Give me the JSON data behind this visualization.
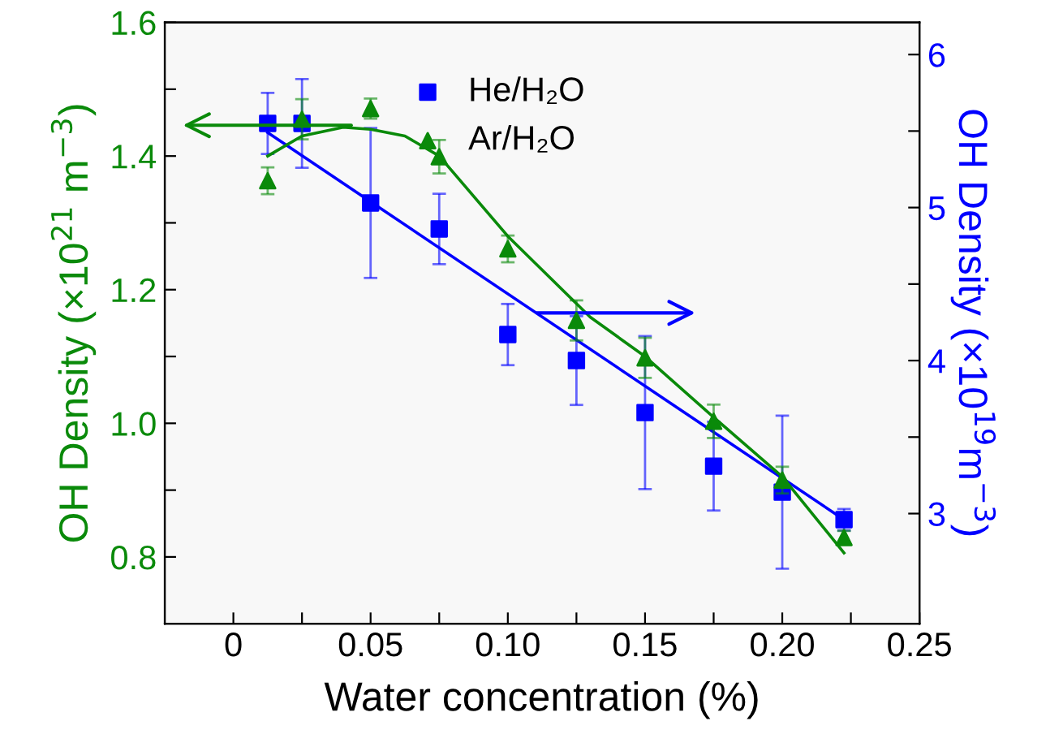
{
  "chart_data": {
    "type": "scatter",
    "xlabel": "Water concentration (%)",
    "ylabel": "OH Density (×10$^{21}$ m$^{−3}$)",
    "y2label": "OH Density (×10$^{19}$m$^{−3}$)",
    "xlim": [
      -0.025,
      0.25
    ],
    "xticks": [
      {
        "value": 0,
        "label": "0"
      },
      {
        "value": 0.025,
        "label": null
      },
      {
        "value": 0.05,
        "label": "0.05"
      },
      {
        "value": 0.075,
        "label": null
      },
      {
        "value": 0.1,
        "label": "0.10"
      },
      {
        "value": 0.125,
        "label": null
      },
      {
        "value": 0.15,
        "label": "0.15"
      },
      {
        "value": 0.175,
        "label": null
      },
      {
        "value": 0.2,
        "label": "0.20"
      },
      {
        "value": 0.225,
        "label": null
      },
      {
        "value": 0.25,
        "label": "0.25"
      }
    ],
    "ylim": [
      0.7,
      1.6
    ],
    "yticks": [
      {
        "value": 0.8,
        "label": "0.8"
      },
      {
        "value": 0.9,
        "label": null
      },
      {
        "value": 1.0,
        "label": "1.0"
      },
      {
        "value": 1.1,
        "label": null
      },
      {
        "value": 1.2,
        "label": "1.2"
      },
      {
        "value": 1.3,
        "label": null
      },
      {
        "value": 1.4,
        "label": "1.4"
      },
      {
        "value": 1.5,
        "label": null
      },
      {
        "value": 1.6,
        "label": "1.6"
      }
    ],
    "y2lim": [
      2.28,
      6.21
    ],
    "y2ticks": [
      3,
      {
        "value": 3.5,
        "label": null
      },
      4,
      {
        "value": 4.5,
        "label": null
      },
      5,
      {
        "value": 5.5,
        "label": null
      },
      6
    ],
    "grid": false,
    "legend": "top",
    "series": [
      {
        "name": "He/H₂O",
        "axis": "y2",
        "marker": "square",
        "color": "#0000ff",
        "x": [
          0.0125,
          0.025,
          0.05,
          0.075,
          0.1,
          0.125,
          0.15,
          0.175,
          0.2,
          0.2225
        ],
        "values": [
          5.55,
          5.55,
          5.03,
          4.86,
          4.17,
          4.0,
          3.66,
          3.31,
          3.14,
          2.96
        ],
        "errors": [
          0.2,
          0.29,
          0.49,
          0.23,
          0.2,
          0.29,
          0.5,
          0.29,
          0.5,
          0.07
        ]
      },
      {
        "name": "Ar/H₂O",
        "axis": "y",
        "marker": "triangle",
        "color": "#0a8a0a",
        "x": [
          0.0125,
          0.025,
          0.05,
          0.075,
          0.1,
          0.125,
          0.15,
          0.175,
          0.2,
          0.2225
        ],
        "values": [
          1.363,
          1.455,
          1.471,
          1.399,
          1.261,
          1.154,
          1.098,
          1.003,
          0.915,
          0.829
        ],
        "errors": [
          0.02,
          0.03,
          0.015,
          0.025,
          0.02,
          0.03,
          0.03,
          0.025,
          0.02,
          0.01
        ]
      },
      {
        "type": "line",
        "axis": "y2",
        "marker": "none",
        "color": "#0000ff",
        "x": [
          0.0125,
          0.2225
        ],
        "values": [
          5.49,
          2.96
        ]
      },
      {
        "type": "line",
        "axis": "y",
        "marker": "none",
        "color": "#0a8a0a",
        "x": [
          0.0125,
          0.025,
          0.04,
          0.05,
          0.0625,
          0.075,
          0.1,
          0.13,
          0.15,
          0.175,
          0.2,
          0.2225
        ],
        "values": [
          1.4,
          1.43,
          1.443,
          1.44,
          1.43,
          1.4,
          1.28,
          1.159,
          1.1,
          1.009,
          0.92,
          0.806
        ]
      }
    ]
  }
}
